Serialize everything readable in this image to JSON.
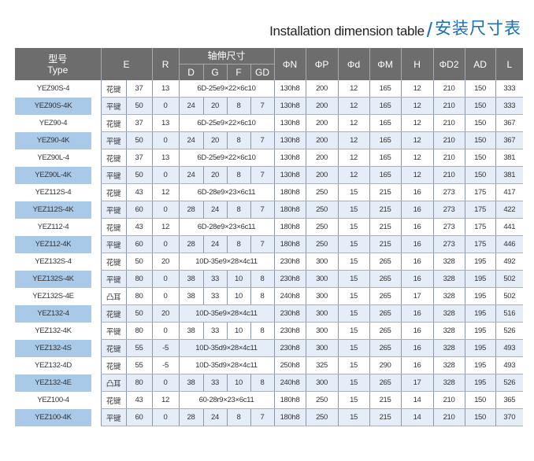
{
  "title": {
    "en": "Installation dimension table",
    "slash": "/",
    "cn": "安装尺寸表"
  },
  "colors": {
    "header_bg": "#6d6d6d",
    "accent": "#1a6fb5",
    "row_alt_bg": "#e5eef8",
    "type_highlight": "#a9c9e9"
  },
  "headers": {
    "type_cn": "型号",
    "type_en": "Type",
    "E": "E",
    "R": "R",
    "shaft": "轴伸尺寸",
    "D": "D",
    "G": "G",
    "F": "F",
    "GD": "GD",
    "N": "ΦN",
    "P": "ΦP",
    "d": "Φd",
    "M": "ΦM",
    "H": "H",
    "D2": "ΦD2",
    "AD": "AD",
    "L": "L"
  },
  "rows": [
    {
      "type": "YEZ90S-4",
      "key": "花键",
      "E": "37",
      "R": "13",
      "spline": "6D-25e9×22×6c10",
      "N": "130h8",
      "P": "200",
      "d": "12",
      "M": "165",
      "H": "12",
      "D2": "210",
      "AD": "150",
      "L": "333"
    },
    {
      "type": "YEZ90S-4K",
      "key": "平键",
      "E": "50",
      "R": "0",
      "D": "24",
      "G": "20",
      "F": "8",
      "GD": "7",
      "N": "130h8",
      "P": "200",
      "d": "12",
      "M": "165",
      "H": "12",
      "D2": "210",
      "AD": "150",
      "L": "333"
    },
    {
      "type": "YEZ90-4",
      "key": "花键",
      "E": "37",
      "R": "13",
      "spline": "6D-25e9×22×6c10",
      "N": "130h8",
      "P": "200",
      "d": "12",
      "M": "165",
      "H": "12",
      "D2": "210",
      "AD": "150",
      "L": "367"
    },
    {
      "type": "YEZ90-4K",
      "key": "平键",
      "E": "50",
      "R": "0",
      "D": "24",
      "G": "20",
      "F": "8",
      "GD": "7",
      "N": "130h8",
      "P": "200",
      "d": "12",
      "M": "165",
      "H": "12",
      "D2": "210",
      "AD": "150",
      "L": "367"
    },
    {
      "type": "YEZ90L-4",
      "key": "花键",
      "E": "37",
      "R": "13",
      "spline": "6D-25e9×22×6c10",
      "N": "130h8",
      "P": "200",
      "d": "12",
      "M": "165",
      "H": "12",
      "D2": "210",
      "AD": "150",
      "L": "381"
    },
    {
      "type": "YEZ90L-4K",
      "key": "平键",
      "E": "50",
      "R": "0",
      "D": "24",
      "G": "20",
      "F": "8",
      "GD": "7",
      "N": "130h8",
      "P": "200",
      "d": "12",
      "M": "165",
      "H": "12",
      "D2": "210",
      "AD": "150",
      "L": "381"
    },
    {
      "type": "YEZ112S-4",
      "key": "花键",
      "E": "43",
      "R": "12",
      "spline": "6D-28e9×23×6c11",
      "N": "180h8",
      "P": "250",
      "d": "15",
      "M": "215",
      "H": "16",
      "D2": "273",
      "AD": "175",
      "L": "417"
    },
    {
      "type": "YEZ112S-4K",
      "key": "平键",
      "E": "60",
      "R": "0",
      "D": "28",
      "G": "24",
      "F": "8",
      "GD": "7",
      "N": "180h8",
      "P": "250",
      "d": "15",
      "M": "215",
      "H": "16",
      "D2": "273",
      "AD": "175",
      "L": "422"
    },
    {
      "type": "YEZ112-4",
      "key": "花键",
      "E": "43",
      "R": "12",
      "spline": "6D-28e9×23×6c11",
      "N": "180h8",
      "P": "250",
      "d": "15",
      "M": "215",
      "H": "16",
      "D2": "273",
      "AD": "175",
      "L": "441"
    },
    {
      "type": "YEZ112-4K",
      "key": "平键",
      "E": "60",
      "R": "0",
      "D": "28",
      "G": "24",
      "F": "8",
      "GD": "7",
      "N": "180h8",
      "P": "250",
      "d": "15",
      "M": "215",
      "H": "16",
      "D2": "273",
      "AD": "175",
      "L": "446"
    },
    {
      "type": "YEZ132S-4",
      "key": "花键",
      "E": "50",
      "R": "20",
      "spline": "10D-35e9×28×4c11",
      "N": "230h8",
      "P": "300",
      "d": "15",
      "M": "265",
      "H": "16",
      "D2": "328",
      "AD": "195",
      "L": "492"
    },
    {
      "type": "YEZ132S-4K",
      "key": "平键",
      "E": "80",
      "R": "0",
      "D": "38",
      "G": "33",
      "F": "10",
      "GD": "8",
      "N": "230h8",
      "P": "300",
      "d": "15",
      "M": "265",
      "H": "16",
      "D2": "328",
      "AD": "195",
      "L": "502"
    },
    {
      "type": "YEZ132S-4E",
      "key": "凸耳",
      "E": "80",
      "R": "0",
      "D": "38",
      "G": "33",
      "F": "10",
      "GD": "8",
      "N": "240h8",
      "P": "300",
      "d": "15",
      "M": "265",
      "H": "17",
      "D2": "328",
      "AD": "195",
      "L": "502"
    },
    {
      "type": "YEZ132-4",
      "key": "花键",
      "E": "50",
      "R": "20",
      "spline": "10D-35e9×28×4c11",
      "N": "230h8",
      "P": "300",
      "d": "15",
      "M": "265",
      "H": "16",
      "D2": "328",
      "AD": "195",
      "L": "516"
    },
    {
      "type": "YEZ132-4K",
      "key": "平键",
      "E": "80",
      "R": "0",
      "D": "38",
      "G": "33",
      "F": "10",
      "GD": "8",
      "N": "230h8",
      "P": "300",
      "d": "15",
      "M": "265",
      "H": "16",
      "D2": "328",
      "AD": "195",
      "L": "526"
    },
    {
      "type": "YEZ132-4S",
      "key": "花键",
      "E": "55",
      "R": "-5",
      "spline": "10D-35d9×28×4c11",
      "N": "230h8",
      "P": "300",
      "d": "15",
      "M": "265",
      "H": "16",
      "D2": "328",
      "AD": "195",
      "L": "493"
    },
    {
      "type": "YEZ132-4D",
      "key": "花键",
      "E": "55",
      "R": "-5",
      "spline": "10D-35d9×28×4c11",
      "N": "250h8",
      "P": "325",
      "d": "15",
      "M": "290",
      "H": "16",
      "D2": "328",
      "AD": "195",
      "L": "493"
    },
    {
      "type": "YEZ132-4E",
      "key": "凸耳",
      "E": "80",
      "R": "0",
      "D": "38",
      "G": "33",
      "F": "10",
      "GD": "8",
      "N": "240h8",
      "P": "300",
      "d": "15",
      "M": "265",
      "H": "17",
      "D2": "328",
      "AD": "195",
      "L": "526"
    },
    {
      "type": "YEZ100-4",
      "key": "花键",
      "E": "43",
      "R": "12",
      "spline": "60-28r9×23×6c11",
      "N": "180h8",
      "P": "250",
      "d": "15",
      "M": "215",
      "H": "14",
      "D2": "210",
      "AD": "150",
      "L": "365"
    },
    {
      "type": "YEZ100-4K",
      "key": "平键",
      "E": "60",
      "R": "0",
      "D": "28",
      "G": "24",
      "F": "8",
      "GD": "7",
      "N": "180h8",
      "P": "250",
      "d": "15",
      "M": "215",
      "H": "14",
      "D2": "210",
      "AD": "150",
      "L": "370"
    }
  ]
}
